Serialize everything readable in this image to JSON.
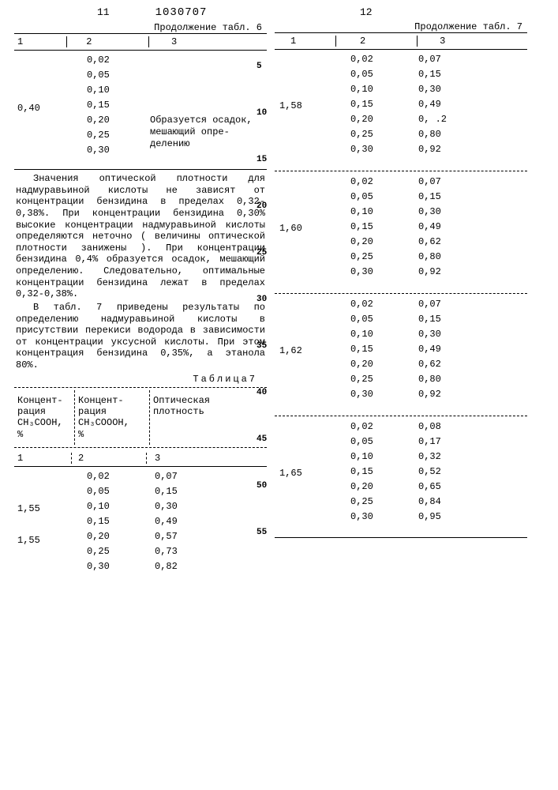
{
  "header": {
    "page_left": "11",
    "doc_number": "1030707",
    "page_right": "12",
    "cont_left": "Продолжение табл. 6",
    "cont_right": "Продолжение табл. 7"
  },
  "left_table6": {
    "head": [
      "1",
      "2",
      "3"
    ],
    "c1_mid": "0,40",
    "c2": [
      "0,02",
      "0,05",
      "0,10",
      "0,15",
      "0,20",
      "0,25",
      "0,30"
    ],
    "c3_note": "Образуется осадок, ме­шающий опре­делению"
  },
  "paragraph1": "Значения оптической плотности для надмуравьиной кислоты не зависят от концентрации бензидина в пределах 0,32-0,38%. При концентрации бензиди­на 0,30% высокие концентрации над­муравьиной кислоты определяются не­точно ( величины оптической плотности занижены ). При концентрации бензиди­на 0,4% образуется осадок, мешающий определению. Следовательно, оптималь­ные концентрации бензидина лежат в пределах 0,32-0,38%.",
  "paragraph2": "В табл. 7 приведены результаты по определению надмуравьиной кисло­ты в присутствии перекиси водорода в зависимости от концентрации уксус­ной кислоты. При этом концентрация бензидина 0,35%, а этанола 80%.",
  "table7_title": "Таблица7",
  "table7_headers": {
    "h1a": "Концент­рация",
    "h1b": "CH₃COOH,",
    "h1c": "%",
    "h2a": "Концент­рация",
    "h2b": "CH₃COOOH,",
    "h2c": "%",
    "h3a": "Оптическая",
    "h3b": "плотность"
  },
  "table7_subhead": [
    "1",
    "2",
    "3"
  ],
  "left_t7_rows": {
    "c1_first": "1,55",
    "c1_second": "1,55",
    "c2": [
      "0,02",
      "0,05",
      "0,10",
      "0,15",
      "0,20",
      "0,25",
      "0,30"
    ],
    "c3": [
      "0,07",
      "0,15",
      "0,30",
      "0,49",
      "0,57",
      "0,73",
      "0,82"
    ]
  },
  "right_blocks": [
    {
      "c1": "1,58",
      "c2": [
        "0,02",
        "0,05",
        "0,10",
        "0,15",
        "0,20",
        "0,25",
        "0,30"
      ],
      "c3": [
        "0,07",
        "0,15",
        "0,30",
        "0,49",
        "0, .2",
        "0,80",
        "0,92"
      ]
    },
    {
      "c1": "1,60",
      "c2": [
        "0,02",
        "0,05",
        "0,10",
        "0,15",
        "0,20",
        "0,25",
        "0,30"
      ],
      "c3": [
        "0,07",
        "0,15",
        "0,30",
        "0,49",
        "0,62",
        "0,80",
        "0,92"
      ]
    },
    {
      "c1": "1,62",
      "c2": [
        "0,02",
        "0,05",
        "0,10",
        "0,15",
        "0,20",
        "0,25",
        "0,30"
      ],
      "c3": [
        "0,07",
        "0,15",
        "0,30",
        "0,49",
        "0,62",
        "0,80",
        "0,92"
      ]
    },
    {
      "c1": "1,65",
      "c2": [
        "0,02",
        "0,05",
        "0,10",
        "0,15",
        "0,20",
        "0,25",
        "0,30"
      ],
      "c3": [
        "0,08",
        "0,17",
        "0,32",
        "0,52",
        "0,65",
        "0,84",
        "0,95"
      ]
    }
  ],
  "line_numbers": [
    "5",
    "10",
    "15",
    "20",
    "25",
    "30",
    "35",
    "40",
    "45",
    "50",
    "55"
  ]
}
